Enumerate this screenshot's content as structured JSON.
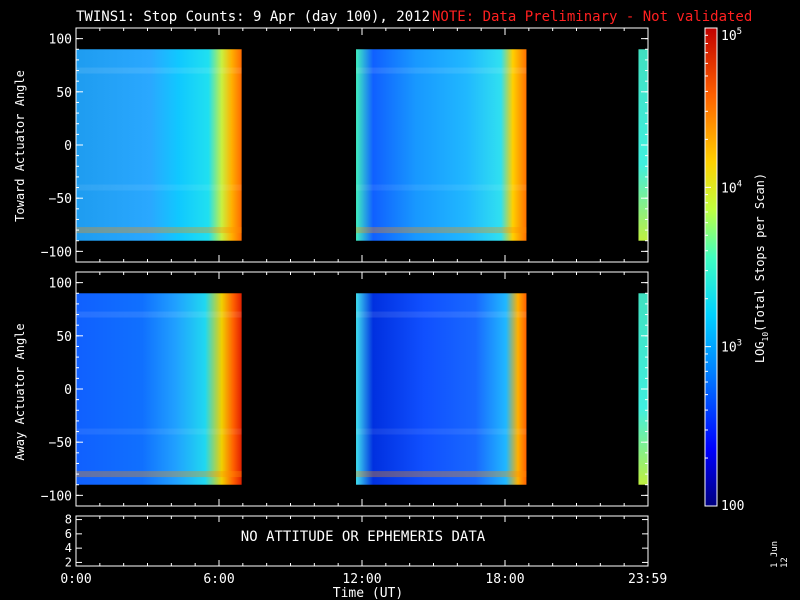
{
  "title": "TWINS1: Stop Counts:  9 Apr (day 100), 2012",
  "note": "NOTE: Data Preliminary - Not validated",
  "colors": {
    "background": "#000000",
    "note": "#ff2020",
    "colormap": [
      "#00007f",
      "#0000ff",
      "#0080ff",
      "#00d0ff",
      "#40ffc0",
      "#c0ff40",
      "#ffd000",
      "#ff6000",
      "#c00000"
    ]
  },
  "chart_data": [
    {
      "type": "heatmap",
      "ylabel": "Toward Actuator Angle",
      "ylim": [
        -110,
        110
      ],
      "yticks": [
        -100,
        -50,
        0,
        50,
        100
      ],
      "xlim_hours": [
        0,
        24
      ],
      "data_y_range": [
        -90,
        90
      ],
      "data_segments_hours": [
        [
          0.0,
          6.95
        ],
        [
          11.75,
          18.9
        ],
        [
          23.6,
          24.0
        ]
      ],
      "log_scale": true
    },
    {
      "type": "heatmap",
      "ylabel": "Away Actuator Angle",
      "ylim": [
        -110,
        110
      ],
      "yticks": [
        -100,
        -50,
        0,
        50,
        100
      ],
      "xlim_hours": [
        0,
        24
      ],
      "data_y_range": [
        -90,
        90
      ],
      "data_segments_hours": [
        [
          0.0,
          6.95
        ],
        [
          11.75,
          18.9
        ],
        [
          23.6,
          24.0
        ]
      ],
      "log_scale": true
    },
    {
      "type": "line",
      "yticks": [
        2,
        4,
        6,
        8
      ],
      "ylim": [
        1.5,
        8.5
      ],
      "message": "NO ATTITUDE OR EPHEMERIS DATA"
    }
  ],
  "xaxis": {
    "label": "Time (UT)",
    "ticks": [
      {
        "hour": 0,
        "label": "0:00"
      },
      {
        "hour": 6,
        "label": "6:00"
      },
      {
        "hour": 12,
        "label": "12:00"
      },
      {
        "hour": 18,
        "label": "18:00"
      },
      {
        "hour": 23.983,
        "label": "23:59"
      }
    ]
  },
  "colorbar": {
    "label": "LOG10(Total Stops per Scan)",
    "label_main": "LOG",
    "label_sub": "10",
    "label_rest": "(Total Stops per Scan)",
    "scale": "log",
    "range": [
      100,
      100000
    ],
    "ticks": [
      {
        "value": 100,
        "base": "100",
        "exp": ""
      },
      {
        "value": 1000,
        "base": "10",
        "exp": "3"
      },
      {
        "value": 10000,
        "base": "10",
        "exp": "4"
      },
      {
        "value": 100000,
        "base": "10",
        "exp": "5"
      }
    ]
  },
  "side_label": "1 Jun 12"
}
